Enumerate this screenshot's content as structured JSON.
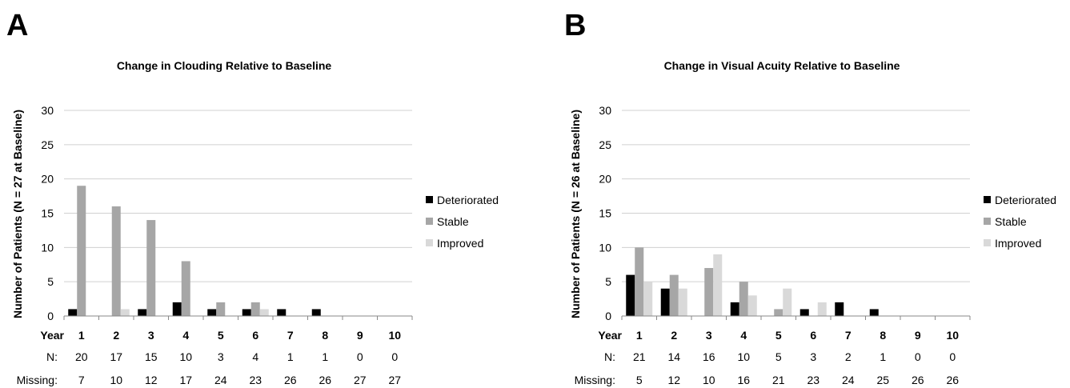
{
  "colors": {
    "deteriorated": "#000000",
    "stable": "#a6a6a6",
    "improved": "#d9d9d9",
    "grid": "#d0d0d0",
    "axis": "#888888",
    "text": "#000000"
  },
  "row_labels": {
    "year": "Year",
    "n": "N:",
    "missing": "Missing:"
  },
  "chart_data": [
    {
      "type": "bar",
      "panel_letter": "A",
      "title": "Change in Clouding  Relative to Baseline",
      "xlabel": "Year",
      "ylabel": "Number of Patients  (N = 27 at Baseline)",
      "ylim": [
        0,
        30
      ],
      "yticks": [
        0,
        5,
        10,
        15,
        20,
        25,
        30
      ],
      "grid": true,
      "legend_position": "right",
      "categories": [
        "1",
        "2",
        "3",
        "4",
        "5",
        "6",
        "7",
        "8",
        "9",
        "10"
      ],
      "series": [
        {
          "name": "Deteriorated",
          "values": [
            1,
            0,
            1,
            2,
            1,
            1,
            1,
            1,
            0,
            0
          ]
        },
        {
          "name": "Stable",
          "values": [
            19,
            16,
            14,
            8,
            2,
            2,
            0,
            0,
            0,
            0
          ]
        },
        {
          "name": "Improved",
          "values": [
            0,
            1,
            0,
            0,
            0,
            1,
            0,
            0,
            0,
            0
          ]
        }
      ],
      "n_values": [
        "20",
        "17",
        "15",
        "10",
        "3",
        "4",
        "1",
        "1",
        "0",
        "0"
      ],
      "missing_values": [
        "7",
        "10",
        "12",
        "17",
        "24",
        "23",
        "26",
        "26",
        "27",
        "27"
      ]
    },
    {
      "type": "bar",
      "panel_letter": "B",
      "title": "Change in Visual Acuity Relative to Baseline",
      "xlabel": "Year",
      "ylabel": "Number of Patients  (N = 26 at Baseline)",
      "ylim": [
        0,
        30
      ],
      "yticks": [
        0,
        5,
        10,
        15,
        20,
        25,
        30
      ],
      "grid": true,
      "legend_position": "right",
      "categories": [
        "1",
        "2",
        "3",
        "4",
        "5",
        "6",
        "7",
        "8",
        "9",
        "10"
      ],
      "series": [
        {
          "name": "Deteriorated",
          "values": [
            6,
            4,
            0,
            2,
            0,
            1,
            2,
            1,
            0,
            0
          ]
        },
        {
          "name": "Stable",
          "values": [
            10,
            6,
            7,
            5,
            1,
            0,
            0,
            0,
            0,
            0
          ]
        },
        {
          "name": "Improved",
          "values": [
            5,
            4,
            9,
            3,
            4,
            2,
            0,
            0,
            0,
            0
          ]
        }
      ],
      "n_values": [
        "21",
        "14",
        "16",
        "10",
        "5",
        "3",
        "2",
        "1",
        "0",
        "0"
      ],
      "missing_values": [
        "5",
        "12",
        "10",
        "16",
        "21",
        "23",
        "24",
        "25",
        "26",
        "26"
      ]
    }
  ]
}
